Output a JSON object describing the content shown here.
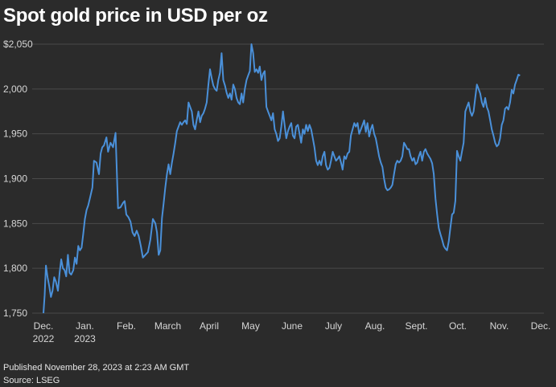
{
  "title": "Spot gold price in USD per oz",
  "footer": {
    "published": "Published November 28, 2023 at 2:23 AM GMT",
    "source": "Source: LSEG"
  },
  "colors": {
    "background": "#2b2b2b",
    "line": "#4a90d9",
    "grid": "#4a4a4a",
    "text": "#d6d6d6"
  },
  "chart_data": {
    "type": "line",
    "title": "Spot gold price in USD per oz",
    "xlabel": "",
    "ylabel": "",
    "grid": true,
    "ylim": [
      1750,
      2050
    ],
    "yticks": [
      {
        "value": 2050,
        "label": "$2,050"
      },
      {
        "value": 2000,
        "label": "2,000"
      },
      {
        "value": 1950,
        "label": "1,950"
      },
      {
        "value": 1900,
        "label": "1,900"
      },
      {
        "value": 1850,
        "label": "1,850"
      },
      {
        "value": 1800,
        "label": "1,800"
      },
      {
        "value": 1750,
        "label": "1,750"
      }
    ],
    "xticks": [
      {
        "value": 0,
        "label": "Dec.",
        "sublabel": "2022"
      },
      {
        "value": 1,
        "label": "Jan.",
        "sublabel": "2023"
      },
      {
        "value": 2,
        "label": "Feb.",
        "sublabel": ""
      },
      {
        "value": 3,
        "label": "March",
        "sublabel": ""
      },
      {
        "value": 4,
        "label": "April",
        "sublabel": ""
      },
      {
        "value": 5,
        "label": "May",
        "sublabel": ""
      },
      {
        "value": 6,
        "label": "June",
        "sublabel": ""
      },
      {
        "value": 7,
        "label": "July",
        "sublabel": ""
      },
      {
        "value": 8,
        "label": "Aug.",
        "sublabel": ""
      },
      {
        "value": 9,
        "label": "Sept.",
        "sublabel": ""
      },
      {
        "value": 10,
        "label": "Oct.",
        "sublabel": ""
      },
      {
        "value": 11,
        "label": "Nov.",
        "sublabel": ""
      },
      {
        "value": 12,
        "label": "Dec.",
        "sublabel": ""
      }
    ],
    "series": [
      {
        "values": [
          [
            0.0,
            1750
          ],
          [
            0.03,
            1770
          ],
          [
            0.06,
            1803
          ],
          [
            0.1,
            1790
          ],
          [
            0.14,
            1780
          ],
          [
            0.18,
            1768
          ],
          [
            0.22,
            1775
          ],
          [
            0.26,
            1790
          ],
          [
            0.3,
            1785
          ],
          [
            0.35,
            1775
          ],
          [
            0.39,
            1795
          ],
          [
            0.43,
            1810
          ],
          [
            0.47,
            1800
          ],
          [
            0.51,
            1798
          ],
          [
            0.55,
            1791
          ],
          [
            0.59,
            1815
          ],
          [
            0.63,
            1795
          ],
          [
            0.67,
            1793
          ],
          [
            0.72,
            1798
          ],
          [
            0.76,
            1812
          ],
          [
            0.8,
            1805
          ],
          [
            0.84,
            1825
          ],
          [
            0.88,
            1820
          ],
          [
            0.92,
            1823
          ],
          [
            0.96,
            1838
          ],
          [
            1.0,
            1855
          ],
          [
            1.04,
            1865
          ],
          [
            1.08,
            1870
          ],
          [
            1.12,
            1878
          ],
          [
            1.18,
            1890
          ],
          [
            1.22,
            1920
          ],
          [
            1.28,
            1918
          ],
          [
            1.34,
            1905
          ],
          [
            1.38,
            1928
          ],
          [
            1.42,
            1935
          ],
          [
            1.46,
            1937
          ],
          [
            1.52,
            1946
          ],
          [
            1.56,
            1930
          ],
          [
            1.62,
            1940
          ],
          [
            1.68,
            1935
          ],
          [
            1.74,
            1951
          ],
          [
            1.8,
            1867
          ],
          [
            1.86,
            1868
          ],
          [
            1.92,
            1873
          ],
          [
            1.96,
            1875
          ],
          [
            2.0,
            1860
          ],
          [
            2.05,
            1857
          ],
          [
            2.1,
            1852
          ],
          [
            2.15,
            1840
          ],
          [
            2.2,
            1836
          ],
          [
            2.25,
            1842
          ],
          [
            2.3,
            1836
          ],
          [
            2.35,
            1825
          ],
          [
            2.4,
            1812
          ],
          [
            2.46,
            1815
          ],
          [
            2.52,
            1818
          ],
          [
            2.58,
            1832
          ],
          [
            2.64,
            1855
          ],
          [
            2.7,
            1850
          ],
          [
            2.74,
            1840
          ],
          [
            2.78,
            1815
          ],
          [
            2.82,
            1820
          ],
          [
            2.86,
            1856
          ],
          [
            2.9,
            1872
          ],
          [
            2.94,
            1890
          ],
          [
            2.98,
            1905
          ],
          [
            3.02,
            1916
          ],
          [
            3.06,
            1905
          ],
          [
            3.1,
            1918
          ],
          [
            3.14,
            1928
          ],
          [
            3.18,
            1940
          ],
          [
            3.22,
            1953
          ],
          [
            3.26,
            1958
          ],
          [
            3.3,
            1963
          ],
          [
            3.34,
            1960
          ],
          [
            3.38,
            1963
          ],
          [
            3.42,
            1965
          ],
          [
            3.46,
            1961
          ],
          [
            3.5,
            1985
          ],
          [
            3.54,
            1980
          ],
          [
            3.58,
            1975
          ],
          [
            3.62,
            1960
          ],
          [
            3.66,
            1955
          ],
          [
            3.7,
            1966
          ],
          [
            3.74,
            1975
          ],
          [
            3.78,
            1963
          ],
          [
            3.82,
            1970
          ],
          [
            3.86,
            1973
          ],
          [
            3.9,
            1978
          ],
          [
            3.94,
            1985
          ],
          [
            3.98,
            2005
          ],
          [
            4.02,
            2022
          ],
          [
            4.06,
            2012
          ],
          [
            4.1,
            2004
          ],
          [
            4.14,
            2000
          ],
          [
            4.18,
            1998
          ],
          [
            4.22,
            2010
          ],
          [
            4.26,
            2018
          ],
          [
            4.3,
            2040
          ],
          [
            4.34,
            2010
          ],
          [
            4.38,
            2004
          ],
          [
            4.42,
            1996
          ],
          [
            4.46,
            1990
          ],
          [
            4.5,
            1995
          ],
          [
            4.54,
            1988
          ],
          [
            4.58,
            2005
          ],
          [
            4.62,
            2000
          ],
          [
            4.66,
            1990
          ],
          [
            4.7,
            1985
          ],
          [
            4.74,
            1983
          ],
          [
            4.78,
            1995
          ],
          [
            4.82,
            1985
          ],
          [
            4.86,
            2000
          ],
          [
            4.9,
            2010
          ],
          [
            4.94,
            2015
          ],
          [
            4.98,
            2020
          ],
          [
            5.02,
            2050
          ],
          [
            5.06,
            2040
          ],
          [
            5.1,
            2019
          ],
          [
            5.14,
            2022
          ],
          [
            5.18,
            2018
          ],
          [
            5.22,
            2025
          ],
          [
            5.26,
            2010
          ],
          [
            5.3,
            2017
          ],
          [
            5.34,
            2020
          ],
          [
            5.38,
            1980
          ],
          [
            5.42,
            1975
          ],
          [
            5.46,
            1970
          ],
          [
            5.5,
            1965
          ],
          [
            5.54,
            1973
          ],
          [
            5.58,
            1955
          ],
          [
            5.62,
            1950
          ],
          [
            5.66,
            1942
          ],
          [
            5.7,
            1945
          ],
          [
            5.74,
            1958
          ],
          [
            5.78,
            1975
          ],
          [
            5.82,
            1960
          ],
          [
            5.86,
            1945
          ],
          [
            5.9,
            1953
          ],
          [
            5.94,
            1958
          ],
          [
            5.98,
            1962
          ],
          [
            6.02,
            1948
          ],
          [
            6.06,
            1945
          ],
          [
            6.1,
            1958
          ],
          [
            6.14,
            1960
          ],
          [
            6.18,
            1950
          ],
          [
            6.22,
            1940
          ],
          [
            6.26,
            1955
          ],
          [
            6.3,
            1950
          ],
          [
            6.34,
            1960
          ],
          [
            6.38,
            1953
          ],
          [
            6.42,
            1960
          ],
          [
            6.46,
            1955
          ],
          [
            6.5,
            1945
          ],
          [
            6.54,
            1935
          ],
          [
            6.58,
            1920
          ],
          [
            6.62,
            1915
          ],
          [
            6.66,
            1920
          ],
          [
            6.7,
            1915
          ],
          [
            6.74,
            1925
          ],
          [
            6.78,
            1930
          ],
          [
            6.82,
            1915
          ],
          [
            6.86,
            1910
          ],
          [
            6.9,
            1912
          ],
          [
            6.94,
            1920
          ],
          [
            6.98,
            1930
          ],
          [
            7.02,
            1925
          ],
          [
            7.06,
            1920
          ],
          [
            7.1,
            1922
          ],
          [
            7.14,
            1925
          ],
          [
            7.18,
            1918
          ],
          [
            7.22,
            1910
          ],
          [
            7.26,
            1925
          ],
          [
            7.3,
            1922
          ],
          [
            7.34,
            1928
          ],
          [
            7.38,
            1930
          ],
          [
            7.42,
            1948
          ],
          [
            7.46,
            1955
          ],
          [
            7.5,
            1962
          ],
          [
            7.54,
            1958
          ],
          [
            7.58,
            1962
          ],
          [
            7.62,
            1950
          ],
          [
            7.66,
            1955
          ],
          [
            7.7,
            1960
          ],
          [
            7.74,
            1965
          ],
          [
            7.78,
            1952
          ],
          [
            7.82,
            1962
          ],
          [
            7.86,
            1947
          ],
          [
            7.9,
            1955
          ],
          [
            7.94,
            1960
          ],
          [
            7.98,
            1950
          ],
          [
            8.02,
            1945
          ],
          [
            8.06,
            1935
          ],
          [
            8.1,
            1925
          ],
          [
            8.14,
            1918
          ],
          [
            8.18,
            1913
          ],
          [
            8.22,
            1900
          ],
          [
            8.26,
            1890
          ],
          [
            8.3,
            1887
          ],
          [
            8.34,
            1888
          ],
          [
            8.38,
            1890
          ],
          [
            8.42,
            1893
          ],
          [
            8.46,
            1905
          ],
          [
            8.5,
            1916
          ],
          [
            8.54,
            1920
          ],
          [
            8.58,
            1918
          ],
          [
            8.62,
            1920
          ],
          [
            8.66,
            1925
          ],
          [
            8.7,
            1940
          ],
          [
            8.74,
            1937
          ],
          [
            8.78,
            1933
          ],
          [
            8.82,
            1933
          ],
          [
            8.86,
            1925
          ],
          [
            8.9,
            1920
          ],
          [
            8.94,
            1923
          ],
          [
            8.98,
            1916
          ],
          [
            9.02,
            1918
          ],
          [
            9.06,
            1925
          ],
          [
            9.1,
            1930
          ],
          [
            9.14,
            1920
          ],
          [
            9.18,
            1930
          ],
          [
            9.22,
            1933
          ],
          [
            9.26,
            1928
          ],
          [
            9.3,
            1925
          ],
          [
            9.34,
            1922
          ],
          [
            9.38,
            1917
          ],
          [
            9.42,
            1905
          ],
          [
            9.46,
            1878
          ],
          [
            9.5,
            1860
          ],
          [
            9.54,
            1845
          ],
          [
            9.58,
            1838
          ],
          [
            9.62,
            1832
          ],
          [
            9.66,
            1825
          ],
          [
            9.7,
            1822
          ],
          [
            9.74,
            1820
          ],
          [
            9.78,
            1830
          ],
          [
            9.82,
            1845
          ],
          [
            9.86,
            1860
          ],
          [
            9.9,
            1862
          ],
          [
            9.94,
            1875
          ],
          [
            9.98,
            1931
          ],
          [
            10.02,
            1925
          ],
          [
            10.06,
            1920
          ],
          [
            10.1,
            1930
          ],
          [
            10.14,
            1940
          ],
          [
            10.18,
            1975
          ],
          [
            10.22,
            1980
          ],
          [
            10.26,
            1985
          ],
          [
            10.3,
            1975
          ],
          [
            10.34,
            1970
          ],
          [
            10.38,
            1975
          ],
          [
            10.42,
            1990
          ],
          [
            10.46,
            2005
          ],
          [
            10.5,
            2000
          ],
          [
            10.54,
            1995
          ],
          [
            10.58,
            1985
          ],
          [
            10.62,
            1980
          ],
          [
            10.66,
            1990
          ],
          [
            10.7,
            1980
          ],
          [
            10.74,
            1975
          ],
          [
            10.78,
            1965
          ],
          [
            10.82,
            1955
          ],
          [
            10.86,
            1948
          ],
          [
            10.9,
            1940
          ],
          [
            10.94,
            1936
          ],
          [
            10.98,
            1938
          ],
          [
            11.02,
            1945
          ],
          [
            11.06,
            1960
          ],
          [
            11.1,
            1965
          ],
          [
            11.14,
            1978
          ],
          [
            11.18,
            1980
          ],
          [
            11.22,
            1977
          ],
          [
            11.26,
            1985
          ],
          [
            11.3,
            1999
          ],
          [
            11.34,
            1995
          ],
          [
            11.38,
            2005
          ],
          [
            11.42,
            2010
          ],
          [
            11.46,
            2016
          ],
          [
            11.5,
            2015
          ]
        ]
      }
    ]
  }
}
